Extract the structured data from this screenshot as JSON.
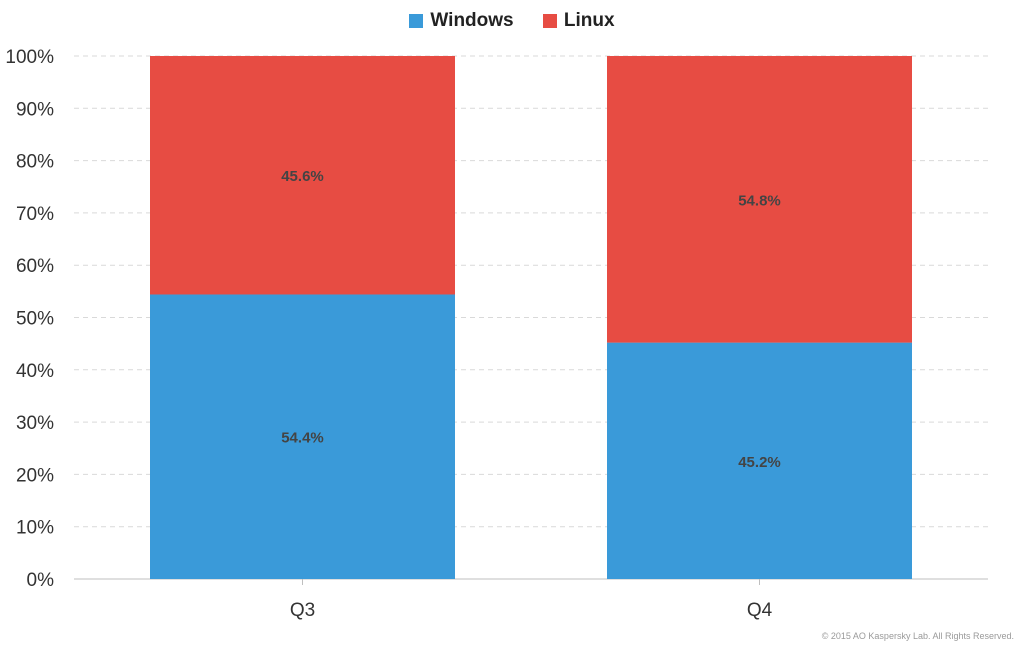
{
  "chart_data": {
    "type": "bar",
    "stacked": true,
    "categories": [
      "Q3",
      "Q4"
    ],
    "series": [
      {
        "name": "Windows",
        "color": "#3a9ad9",
        "values": [
          54.4,
          45.2
        ],
        "labels": [
          "54.4%",
          "45.2%"
        ]
      },
      {
        "name": "Linux",
        "color": "#e74c43",
        "values": [
          45.6,
          54.8
        ],
        "labels": [
          "45.6%",
          "54.8%"
        ]
      }
    ],
    "ylim": [
      0,
      100
    ],
    "yticks": [
      "0%",
      "10%",
      "20%",
      "30%",
      "40%",
      "50%",
      "60%",
      "70%",
      "80%",
      "90%",
      "100%"
    ],
    "grid": true,
    "legend_position": "top-center"
  },
  "footer": {
    "copyright": "© 2015 AO Kaspersky Lab. All Rights Reserved."
  }
}
